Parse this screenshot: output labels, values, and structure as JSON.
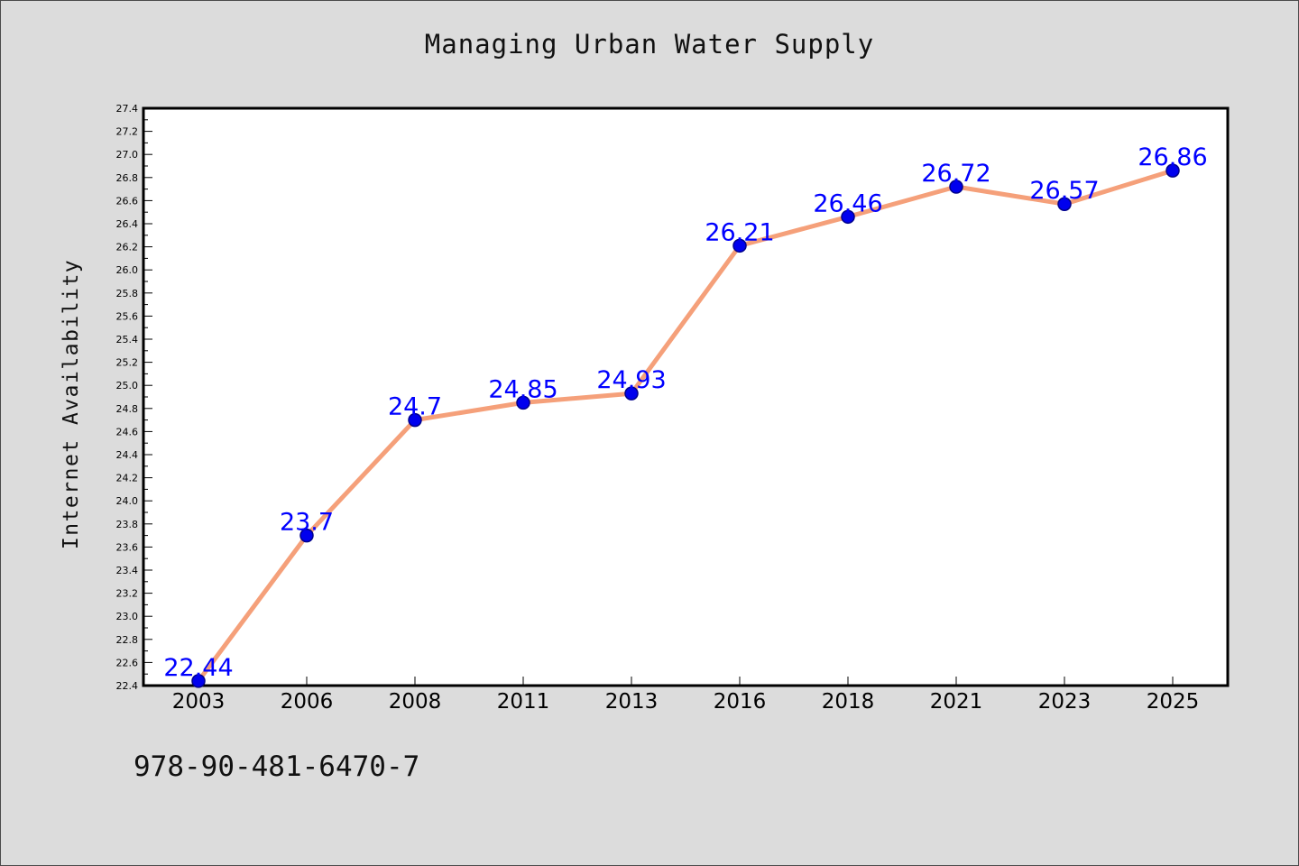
{
  "chart_data": {
    "type": "line",
    "title": "Managing Urban Water Supply",
    "xlabel": "",
    "ylabel": "Internet Availability",
    "categories": [
      "2003",
      "2006",
      "2008",
      "2011",
      "2013",
      "2016",
      "2018",
      "2021",
      "2023",
      "2025"
    ],
    "values": [
      22.44,
      23.7,
      24.7,
      24.85,
      24.93,
      26.21,
      26.46,
      26.72,
      26.57,
      26.86
    ],
    "data_labels": [
      "22.44",
      "23.7",
      "24.7",
      "24.85",
      "24.93",
      "26.21",
      "26.46",
      "26.72",
      "26.57",
      "26.86"
    ],
    "ylim": [
      22.4,
      27.4
    ],
    "yticks": [
      "22.4",
      "22.6",
      "22.8",
      "23.0",
      "23.2",
      "23.4",
      "23.6",
      "23.8",
      "24.0",
      "24.2",
      "24.4",
      "24.6",
      "24.8",
      "25.0",
      "25.2",
      "25.4",
      "25.6",
      "25.8",
      "26.0",
      "26.2",
      "26.4",
      "26.6",
      "26.8",
      "27.0",
      "27.2",
      "27.4"
    ],
    "grid": false,
    "legend": "none",
    "colors": {
      "line": "#f5a07a",
      "marker": "#0000ee",
      "marker_edge": "#00008b",
      "data_label": "#0000ff",
      "plot_bg": "#ffffff",
      "page_bg": "#dcdcdc"
    }
  },
  "footer": {
    "code": "978-90-481-6470-7"
  }
}
